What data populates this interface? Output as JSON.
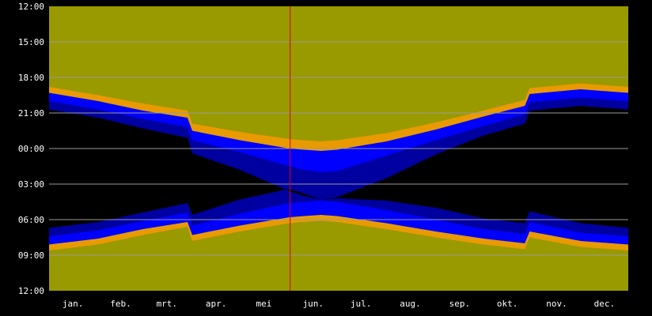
{
  "chart_data": {
    "type": "area",
    "title": "",
    "xlabel": "",
    "ylabel": "",
    "ylim": [
      "12:00",
      "12:00 (next day)"
    ],
    "y_tick_labels": [
      "12:00",
      "15:00",
      "18:00",
      "21:00",
      "00:00",
      "03:00",
      "06:00",
      "09:00",
      "12:00"
    ],
    "x_tick_labels": [
      "jan.",
      "feb.",
      "mrt.",
      "apr.",
      "mei",
      "jun.",
      "jul.",
      "aug.",
      "sep.",
      "okt.",
      "nov.",
      "dec."
    ],
    "grid": true,
    "legend": "none",
    "note_dst": "discontinuities at end of March and end of October (daylight saving time)",
    "current_date_marker": "approx. June 1",
    "colors": {
      "background": "#000000",
      "day": "#999900",
      "civil_twilight": "#e89a00",
      "nautical_twilight": "#0000ff",
      "astronomical_twilight": "#0000a0",
      "night": "#000000",
      "grid": "#9a9a9a",
      "marker": "#dd0000",
      "axis_text": "#ffffff"
    },
    "series_hours": {
      "days": [
        1,
        32,
        60,
        88,
        91,
        121,
        152,
        161,
        172,
        182,
        213,
        244,
        274,
        300,
        303,
        335,
        365
      ],
      "sunset": [
        18.8,
        19.5,
        20.2,
        20.8,
        21.9,
        22.6,
        23.2,
        23.3,
        23.4,
        23.3,
        22.7,
        21.8,
        20.8,
        19.9,
        18.9,
        18.5,
        18.8
      ],
      "civil_dusk": [
        19.3,
        20.0,
        20.8,
        21.4,
        22.5,
        23.3,
        24.0,
        24.1,
        24.2,
        24.1,
        23.4,
        22.4,
        21.3,
        20.4,
        19.4,
        19.0,
        19.3
      ],
      "nautical_dusk": [
        20.0,
        20.7,
        21.5,
        22.2,
        23.3,
        24.3,
        25.5,
        25.8,
        26.0,
        25.9,
        24.6,
        23.3,
        22.1,
        21.1,
        20.1,
        19.7,
        20.0
      ],
      "astronomical_dusk": [
        20.7,
        21.4,
        22.3,
        23.1,
        24.4,
        25.8,
        27.6,
        28.0,
        28.3,
        28.1,
        26.5,
        24.5,
        22.9,
        21.9,
        20.8,
        20.4,
        20.7
      ],
      "astronomical_dawn": [
        30.7,
        30.2,
        29.4,
        28.6,
        29.6,
        28.3,
        27.4,
        27.8,
        28.3,
        28.2,
        28.4,
        29.0,
        29.9,
        30.3,
        29.3,
        30.3,
        30.7
      ],
      "nautical_dawn": [
        31.4,
        30.9,
        30.1,
        29.4,
        30.5,
        29.5,
        28.6,
        28.5,
        28.4,
        28.5,
        29.2,
        30.0,
        30.8,
        31.2,
        30.2,
        31.1,
        31.4
      ],
      "civil_dawn": [
        32.1,
        31.6,
        30.8,
        30.2,
        31.3,
        30.5,
        29.8,
        29.7,
        29.6,
        29.7,
        30.3,
        31.0,
        31.6,
        32.0,
        31.0,
        31.8,
        32.1
      ],
      "sunrise": [
        32.6,
        32.1,
        31.3,
        30.6,
        31.8,
        31.0,
        30.3,
        30.2,
        30.1,
        30.2,
        30.8,
        31.5,
        32.1,
        32.5,
        31.5,
        32.3,
        32.6
      ]
    }
  }
}
